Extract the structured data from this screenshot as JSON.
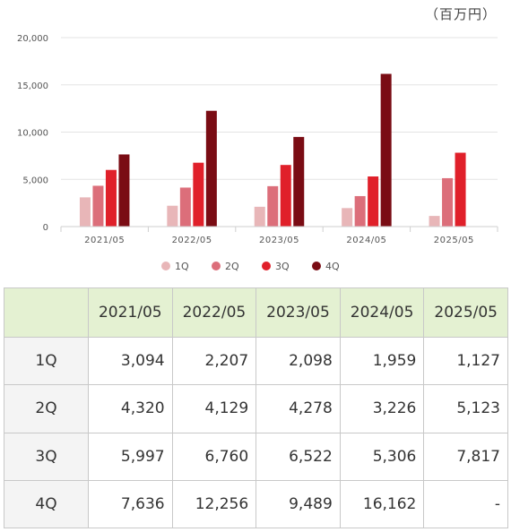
{
  "unit_label": "（百万円）",
  "chart_data": {
    "type": "bar",
    "categories": [
      "2021/05",
      "2022/05",
      "2023/05",
      "2024/05",
      "2025/05"
    ],
    "series": [
      {
        "name": "1Q",
        "color": "#e8b6b8",
        "values": [
          3094,
          2207,
          2098,
          1959,
          1127
        ]
      },
      {
        "name": "2Q",
        "color": "#dc6e7a",
        "values": [
          4320,
          4129,
          4278,
          3226,
          5123
        ]
      },
      {
        "name": "3Q",
        "color": "#e0202a",
        "values": [
          5997,
          6760,
          6522,
          5306,
          7817
        ]
      },
      {
        "name": "4Q",
        "color": "#7a0c14",
        "values": [
          7636,
          12256,
          9489,
          16162,
          null
        ]
      }
    ],
    "ylim": [
      0,
      20000
    ],
    "yticks": [
      0,
      5000,
      10000,
      15000,
      20000
    ],
    "ytick_labels": [
      "0",
      "5,000",
      "10,000",
      "15,000",
      "20,000"
    ],
    "grid": true,
    "legend": "bottom"
  },
  "table": {
    "corner": "",
    "headers": [
      "2021/05",
      "2022/05",
      "2023/05",
      "2024/05",
      "2025/05"
    ],
    "rows": [
      {
        "label": "1Q",
        "cells": [
          "3,094",
          "2,207",
          "2,098",
          "1,959",
          "1,127"
        ]
      },
      {
        "label": "2Q",
        "cells": [
          "4,320",
          "4,129",
          "4,278",
          "3,226",
          "5,123"
        ]
      },
      {
        "label": "3Q",
        "cells": [
          "5,997",
          "6,760",
          "6,522",
          "5,306",
          "7,817"
        ]
      },
      {
        "label": "4Q",
        "cells": [
          "7,636",
          "12,256",
          "9,489",
          "16,162",
          "-"
        ]
      }
    ]
  }
}
